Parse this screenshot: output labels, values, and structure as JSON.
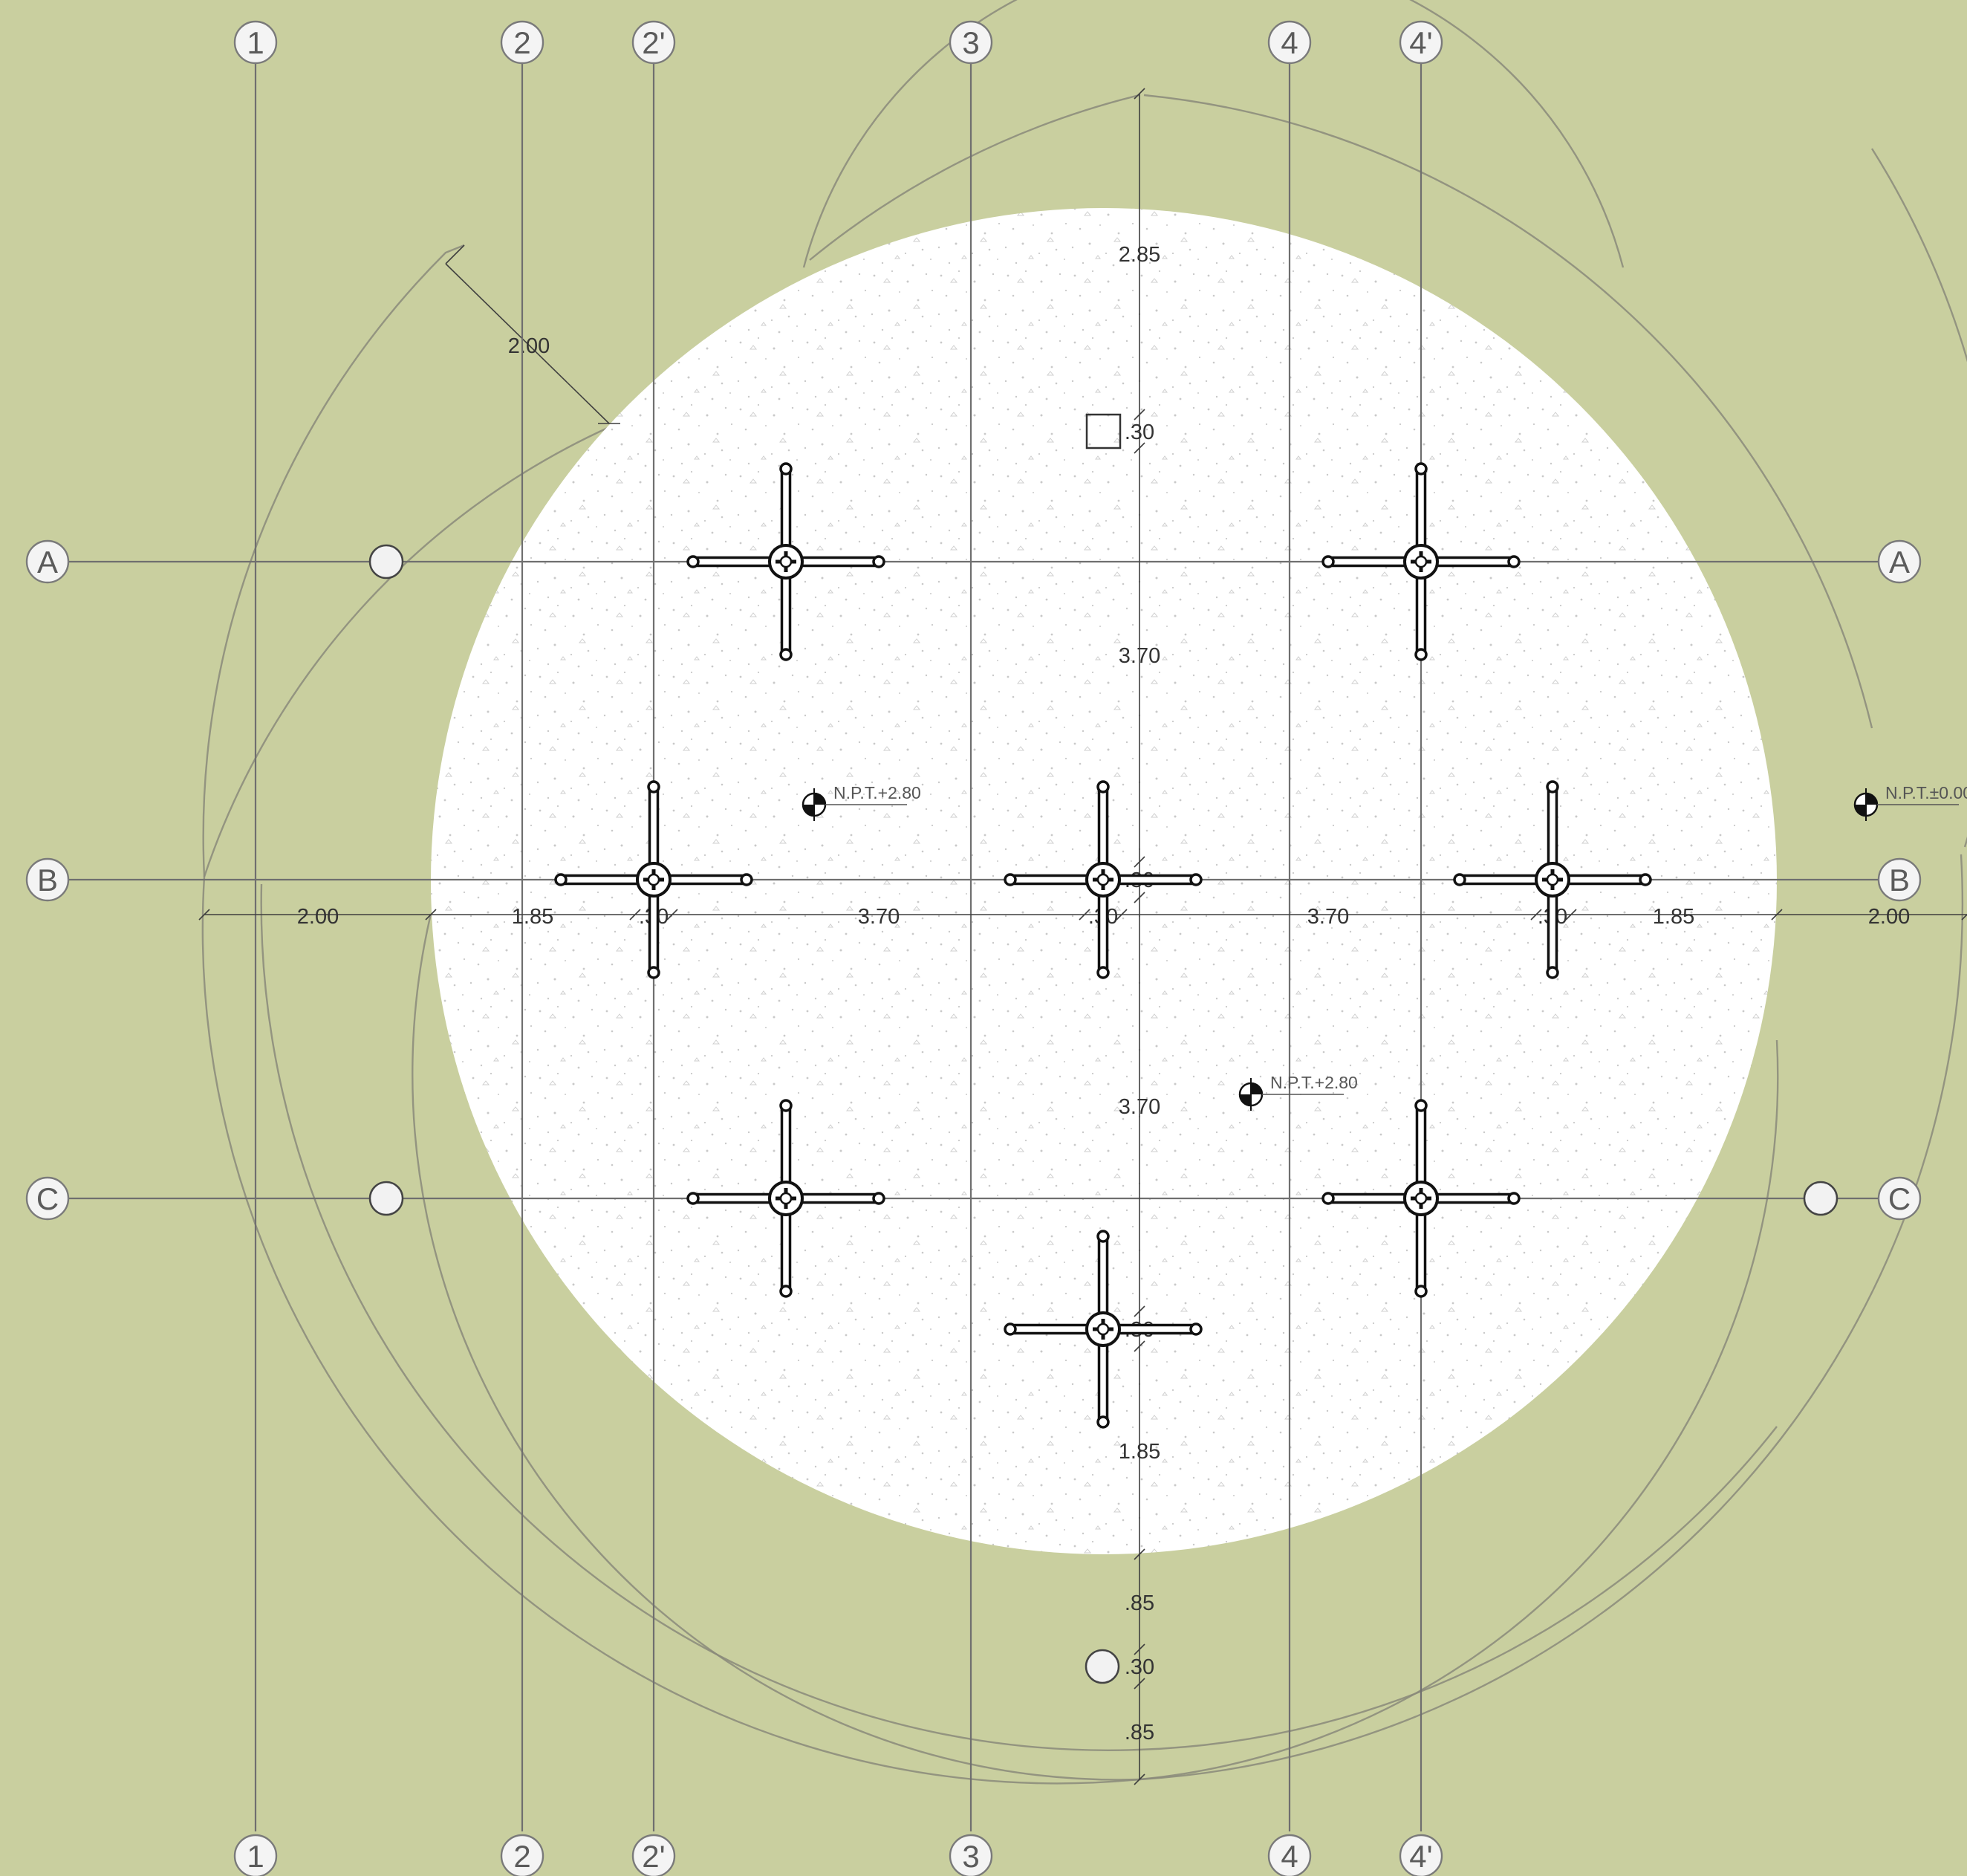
{
  "grid": {
    "columns": [
      "1",
      "2",
      "2'",
      "3",
      "4",
      "4'"
    ],
    "rows": [
      "A",
      "B",
      "C"
    ]
  },
  "dimensions": {
    "horizontal": [
      "2.00",
      "1.85",
      ".30",
      "3.70",
      ".30",
      "3.70",
      ".30",
      "1.85",
      "2.00"
    ],
    "vertical": [
      "2.85",
      ".30",
      "3.70",
      ".30",
      "3.70",
      ".30",
      "1.85",
      ".85",
      ".30",
      ".85"
    ],
    "diagonal": "2.00"
  },
  "levels": [
    "N.P.T.+2.80",
    "N.P.T.+2.80",
    "N.P.T.±0.00"
  ],
  "colors": {
    "background": "#c9cf9f",
    "platform": "#ffffff",
    "lines": "#6f6f6f"
  }
}
